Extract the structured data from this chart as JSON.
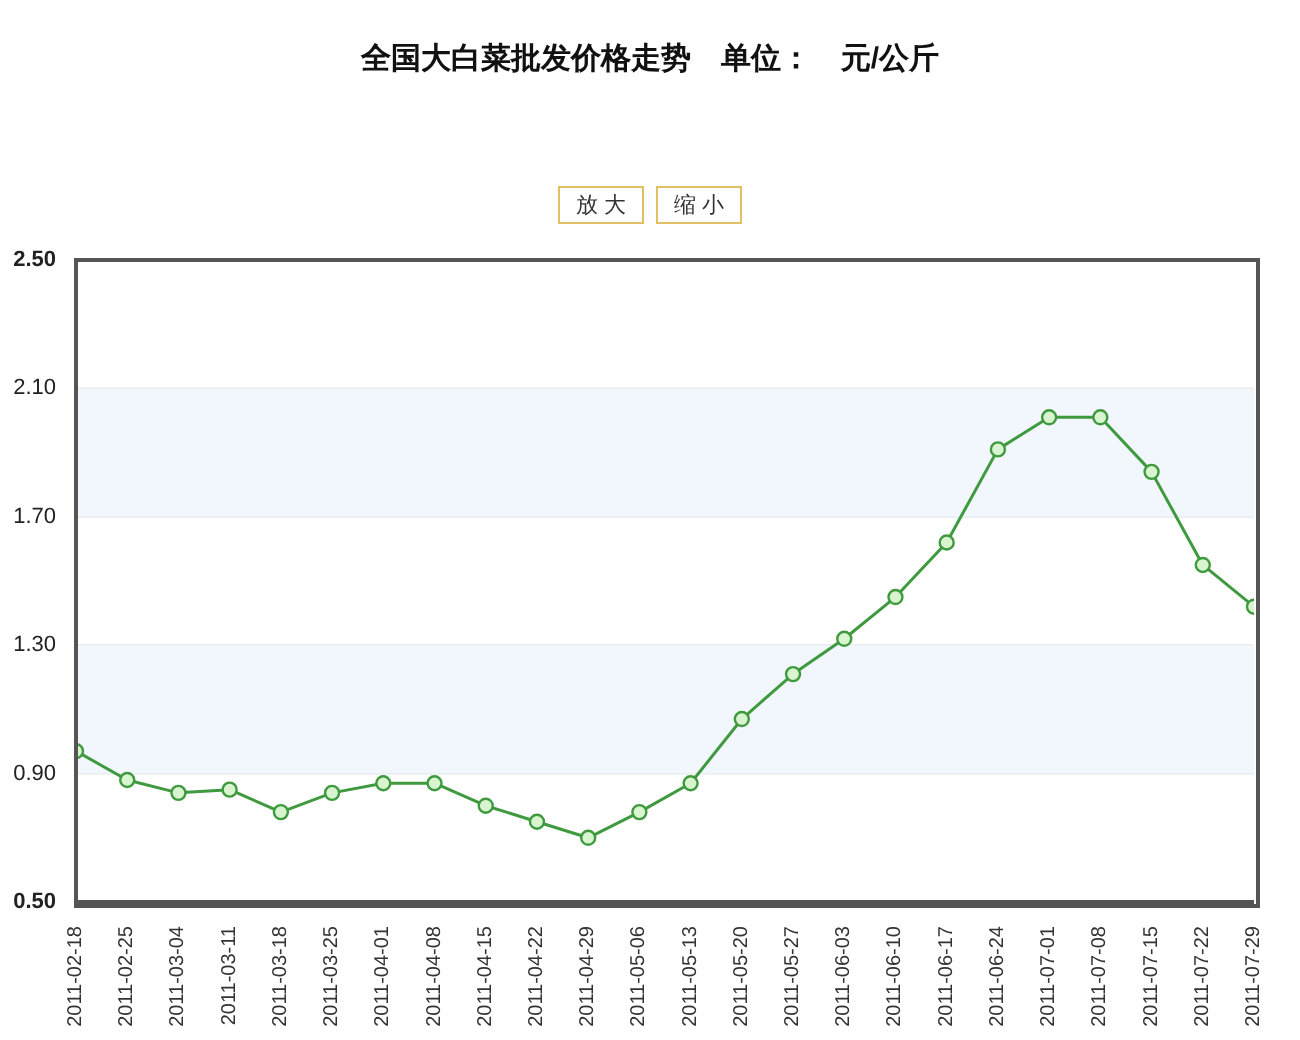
{
  "chart_data": {
    "type": "line",
    "title": "全国大白菜批发价格走势　单位：　元/公斤",
    "annotations": [
      "放 大",
      "缩 小"
    ],
    "categories": [
      "2011-02-18",
      "2011-02-25",
      "2011-03-04",
      "2011-03-11",
      "2011-03-18",
      "2011-03-25",
      "2011-04-01",
      "2011-04-08",
      "2011-04-15",
      "2011-04-22",
      "2011-04-29",
      "2011-05-06",
      "2011-05-13",
      "2011-05-20",
      "2011-05-27",
      "2011-06-03",
      "2011-06-10",
      "2011-06-17",
      "2011-06-24",
      "2011-07-01",
      "2011-07-08",
      "2011-07-15",
      "2011-07-22",
      "2011-07-29"
    ],
    "series": [
      {
        "color": "#3f9a3f",
        "values": [
          0.97,
          0.88,
          0.84,
          0.85,
          0.78,
          0.84,
          0.87,
          0.87,
          0.8,
          0.75,
          0.7,
          0.78,
          0.87,
          1.07,
          1.21,
          1.32,
          1.45,
          1.62,
          1.91,
          2.01,
          2.01,
          1.84,
          1.55,
          1.42
        ]
      }
    ],
    "ylim": [
      0.5,
      2.5
    ],
    "yticks": [
      {
        "value": 0.5,
        "label": "0.50"
      },
      {
        "value": 0.9,
        "label": "0.90"
      },
      {
        "value": 1.3,
        "label": "1.30"
      },
      {
        "value": 1.7,
        "label": "1.70"
      },
      {
        "value": 2.1,
        "label": "2.10"
      },
      {
        "value": 2.5,
        "label": "2.50"
      }
    ],
    "bands": [
      {
        "axis": "y",
        "from": 0.9,
        "to": 1.3,
        "color": "#f2f7fd"
      },
      {
        "axis": "y",
        "from": 1.7,
        "to": 2.1,
        "color": "#f2f7fd"
      }
    ],
    "grid": "y",
    "legend": false,
    "marker": "circle",
    "line_style": "solid"
  }
}
